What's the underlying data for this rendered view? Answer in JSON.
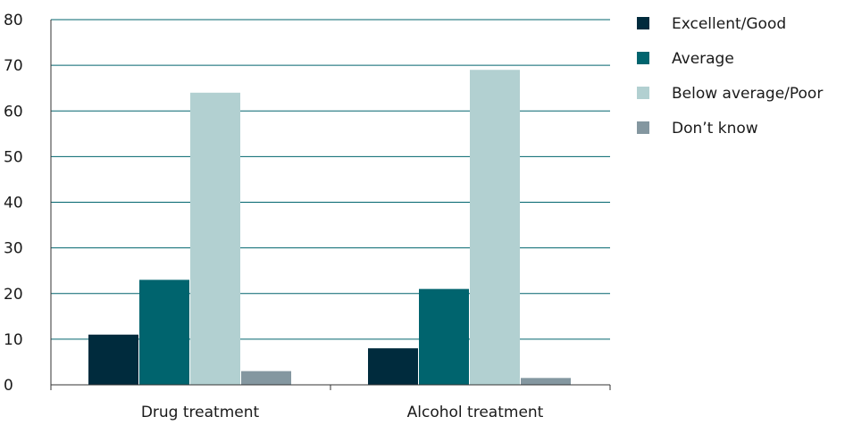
{
  "chart_data": {
    "type": "bar",
    "categories": [
      "Drug treatment",
      "Alcohol treatment"
    ],
    "series": [
      {
        "name": "Excellent/Good",
        "color": "#002b3d",
        "values": [
          11,
          8
        ]
      },
      {
        "name": "Average",
        "color": "#00646e",
        "values": [
          23,
          21
        ]
      },
      {
        "name": "Below average/Poor",
        "color": "#b2d0d1",
        "values": [
          64,
          69
        ]
      },
      {
        "name": "Don’t know",
        "color": "#8497a0",
        "values": [
          3,
          1.5
        ]
      }
    ],
    "yticks": [
      "0",
      "10",
      "20",
      "30",
      "40",
      "50",
      "60",
      "70",
      "80"
    ],
    "ylim": [
      0,
      80
    ],
    "grid": true,
    "legend": "right",
    "gridline_color": "#00646e"
  }
}
